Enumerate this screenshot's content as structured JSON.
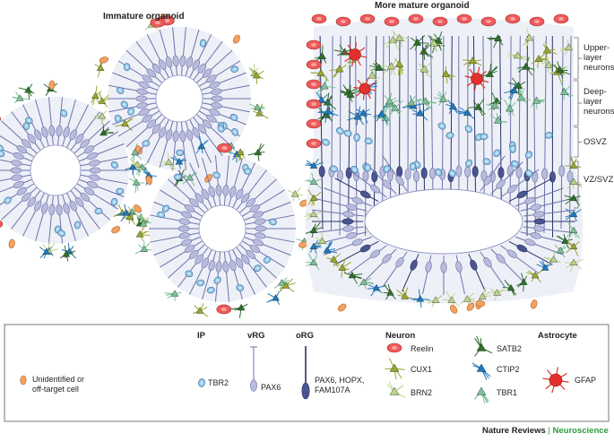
{
  "titles": {
    "immature": "Immature organoid",
    "mature": "More mature organoid"
  },
  "layers": [
    {
      "id": "upper",
      "label": "Upper-layer neurons"
    },
    {
      "id": "deep",
      "label": "Deep-layer neurons"
    },
    {
      "id": "osvz",
      "label": "OSVZ"
    },
    {
      "id": "vzsvz",
      "label": "VZ/SVZ"
    }
  ],
  "legend": {
    "headers": {
      "ip": "IP",
      "vrg": "vRG",
      "org": "oRG",
      "neuron": "Neuron",
      "astrocyte": "Astrocyte"
    },
    "items": {
      "unidentified": "Unidentified or off-target cell",
      "tbr2": "TBR2",
      "pax6": "PAX6",
      "org_markers": "PAX6, HOPX, FAM107A",
      "reelin": "Reelin",
      "cux1": "CUX1",
      "brn2": "BRN2",
      "satb2": "SATB2",
      "ctip2": "CTIP2",
      "tbr1": "TBR1",
      "gfap": "GFAP"
    }
  },
  "footer": {
    "journal": "Nature Reviews",
    "separator": "|",
    "subject": "Neuroscience"
  },
  "colors": {
    "ip": "#8ec5e8",
    "vrg": "#b8bbdc",
    "org": "#4a5590",
    "reelin": "#ef5a5a",
    "cux1": "#9aa62e",
    "brn2": "#bcd48a",
    "satb2": "#2f6e2a",
    "ctip2": "#1d78be",
    "tbr1": "#7cc19a",
    "gfap": "#e2312c",
    "unidentified": "#f3a25f",
    "accent": "#2e9a3f"
  }
}
